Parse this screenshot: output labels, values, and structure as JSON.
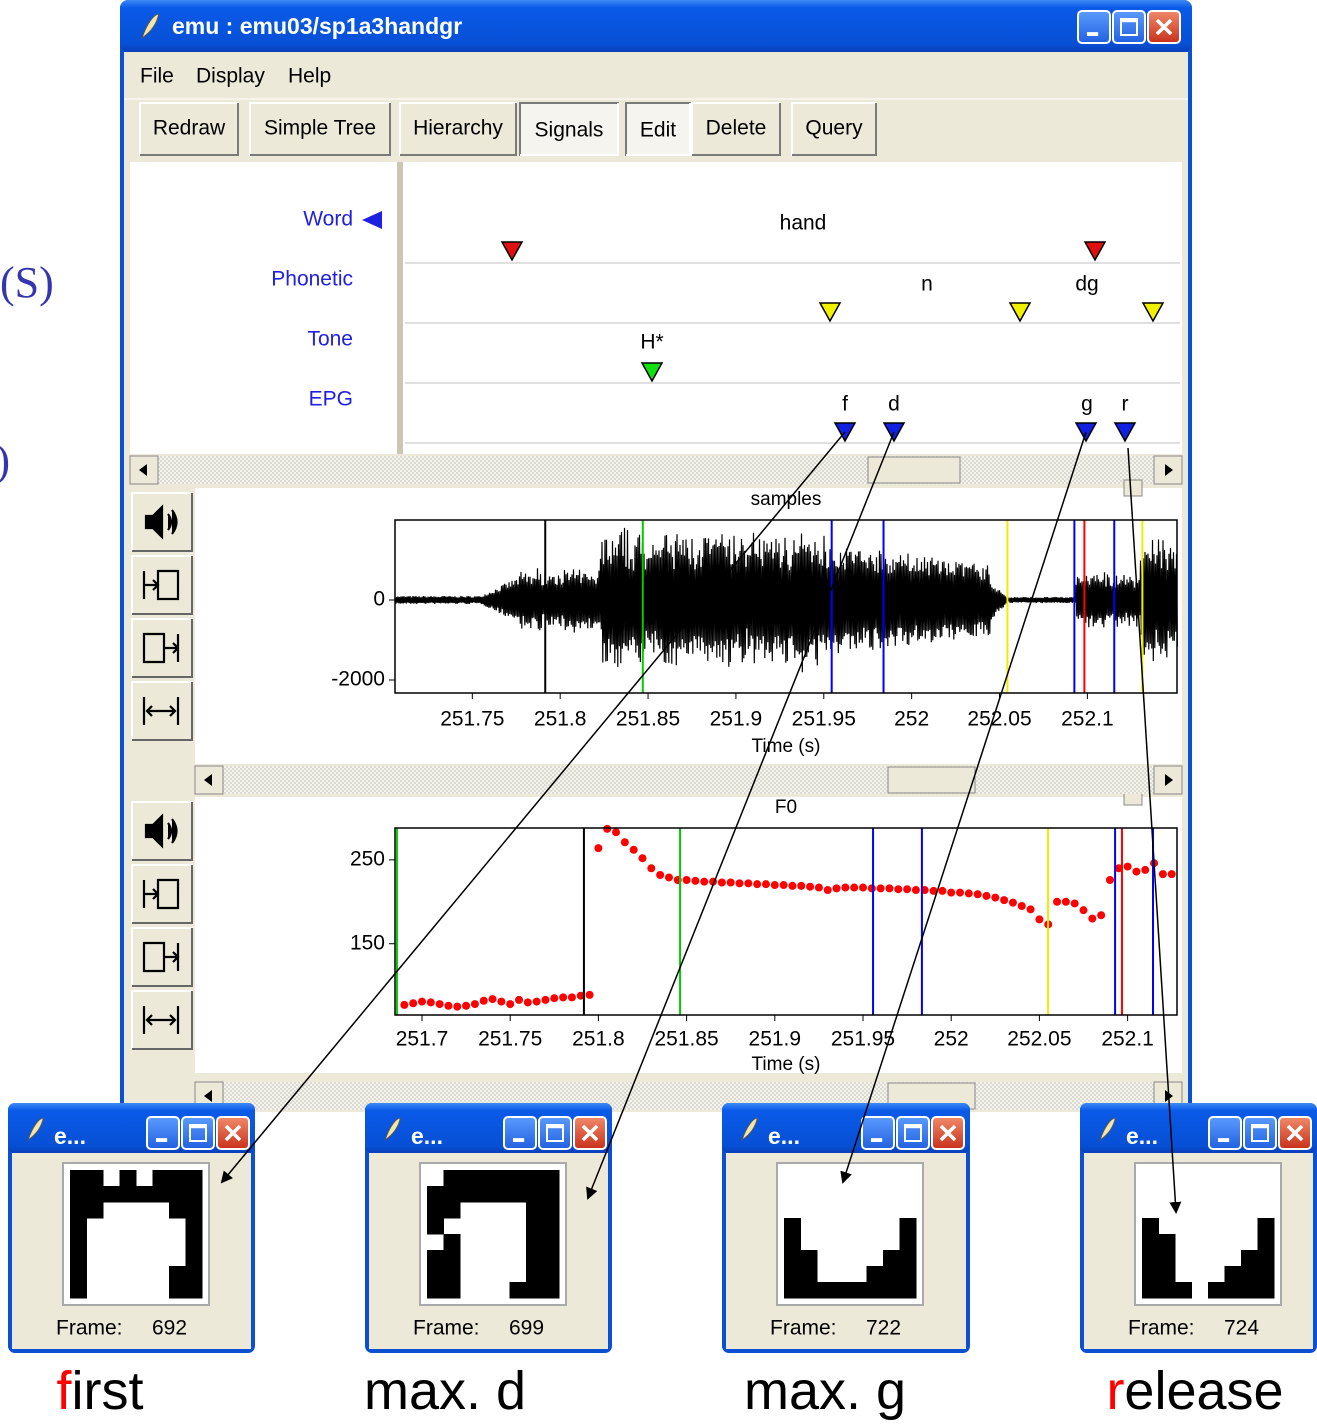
{
  "side_text": [
    "(S)",
    ")"
  ],
  "window": {
    "title": "emu : emu03/sp1a3handgr",
    "menu": [
      "File",
      "Display",
      "Help"
    ],
    "toolbar": [
      "Redraw",
      "Simple Tree",
      "Hierarchy",
      "Signals",
      "Edit",
      "Delete",
      "Query"
    ]
  },
  "tiers": [
    {
      "name": "Word",
      "labels": [
        "hand"
      ]
    },
    {
      "name": "Phonetic",
      "labels": [
        "n",
        "dg"
      ]
    },
    {
      "name": "Tone",
      "labels": [
        "H*"
      ]
    },
    {
      "name": "EPG",
      "labels": [
        "f",
        "d",
        "g",
        "r"
      ]
    }
  ],
  "chart_data": [
    {
      "type": "waveform",
      "title": "samples",
      "x_label": "Time (s)",
      "xlim": [
        251.706,
        252.151
      ],
      "ylim": [
        -2325,
        2000
      ],
      "xticks": [
        251.75,
        251.8,
        251.85,
        251.9,
        251.95,
        252,
        252.05,
        252.1
      ],
      "yticks": [
        -2000,
        0
      ],
      "markers": [
        {
          "x": 251.7915,
          "color": "#000000"
        },
        {
          "x": 251.847,
          "color": "#00cc00"
        },
        {
          "x": 251.9545,
          "color": "#0000ff"
        },
        {
          "x": 251.984,
          "color": "#0000ff"
        },
        {
          "x": 252.0545,
          "color": "#eeee00"
        },
        {
          "x": 252.0926,
          "color": "#0000ff"
        },
        {
          "x": 252.0983,
          "color": "#ff0000"
        },
        {
          "x": 252.1153,
          "color": "#0000ff"
        },
        {
          "x": 252.1313,
          "color": "#eeee00"
        }
      ]
    },
    {
      "type": "scatter",
      "title": "F0",
      "x_label": "Time (s)",
      "xlim": [
        251.6847,
        252.128
      ],
      "ylim": [
        65,
        288
      ],
      "xticks": [
        251.7,
        251.75,
        251.8,
        251.85,
        251.9,
        251.95,
        252,
        252.05,
        252.1
      ],
      "yticks": [
        150,
        250
      ],
      "color": "#ff0000",
      "x": [
        251.69,
        251.695,
        251.7,
        251.705,
        251.71,
        251.715,
        251.72,
        251.725,
        251.73,
        251.735,
        251.74,
        251.745,
        251.75,
        251.755,
        251.76,
        251.765,
        251.77,
        251.775,
        251.78,
        251.785,
        251.79,
        251.795,
        251.8,
        251.805,
        251.81,
        251.815,
        251.82,
        251.825,
        251.83,
        251.835,
        251.84,
        251.845,
        251.85,
        251.855,
        251.86,
        251.865,
        251.87,
        251.875,
        251.88,
        251.885,
        251.89,
        251.895,
        251.9,
        251.905,
        251.91,
        251.915,
        251.92,
        251.925,
        251.93,
        251.935,
        251.94,
        251.945,
        251.95,
        251.955,
        251.96,
        251.965,
        251.97,
        251.975,
        251.98,
        251.985,
        251.99,
        251.995,
        252.0,
        252.005,
        252.01,
        252.015,
        252.02,
        252.025,
        252.03,
        252.035,
        252.04,
        252.045,
        252.05,
        252.055,
        252.06,
        252.065,
        252.07,
        252.075,
        252.08,
        252.085,
        252.09,
        252.095,
        252.1,
        252.105,
        252.11,
        252.115,
        252.12,
        252.125
      ],
      "values": [
        77,
        79,
        81,
        80,
        78,
        76,
        75,
        76,
        78,
        82,
        84,
        81,
        78,
        83,
        80,
        81,
        83,
        85,
        86,
        86,
        88,
        89,
        264,
        287,
        283,
        271,
        262,
        252,
        240,
        232,
        229,
        226,
        226,
        225,
        224,
        224,
        223,
        223,
        222,
        222,
        221,
        221,
        220,
        220,
        219,
        219,
        218,
        217,
        214,
        216,
        217,
        217,
        217,
        216,
        216,
        216,
        215,
        215,
        214,
        214,
        213,
        213,
        211,
        211,
        210,
        209,
        207,
        205,
        202,
        199,
        195,
        191,
        179,
        173,
        200,
        200,
        198,
        190,
        180,
        184,
        226,
        240,
        242,
        236,
        238,
        246,
        233,
        233
      ],
      "markers": [
        {
          "x": 251.6858,
          "color": "#00cc00"
        },
        {
          "x": 251.7918,
          "color": "#000000"
        },
        {
          "x": 251.8463,
          "color": "#00cc00"
        },
        {
          "x": 251.9557,
          "color": "#0000ff"
        },
        {
          "x": 251.9834,
          "color": "#0000ff"
        },
        {
          "x": 252.0549,
          "color": "#eeee00"
        },
        {
          "x": 252.0929,
          "color": "#0000ff"
        },
        {
          "x": 252.0968,
          "color": "#ff0000"
        },
        {
          "x": 252.1144,
          "color": "#0000ff"
        }
      ]
    }
  ],
  "epg_windows": [
    {
      "title": "e...",
      "frame_label": "Frame:",
      "frame": 692,
      "caption": {
        "red": "f",
        "rest": "irst"
      },
      "contacts": [
        "11010111",
        "11111111",
        "11000011",
        "10000001",
        "10000001",
        "10000001",
        "10000011",
        "10000011"
      ]
    },
    {
      "title": "e...",
      "frame_label": "Frame:",
      "frame": 699,
      "caption": {
        "rest": "max. d"
      },
      "contacts": [
        "01111111",
        "11111111",
        "11000011",
        "10000011",
        "01000011",
        "11000011",
        "11000011",
        "11000111"
      ]
    },
    {
      "title": "e...",
      "frame_label": "Frame:",
      "frame": 722,
      "caption": {
        "rest": "max. g"
      },
      "contacts": [
        "00000000",
        "00000000",
        "00000000",
        "10000001",
        "10000001",
        "11000011",
        "11000111",
        "11111111"
      ]
    },
    {
      "title": "e...",
      "frame_label": "Frame:",
      "frame": 724,
      "caption": {
        "red": "r",
        "rest": "elease"
      },
      "contacts": [
        "00000000",
        "00000000",
        "00000000",
        "10000001",
        "11000001",
        "11000011",
        "11000111",
        "11101111"
      ]
    }
  ]
}
